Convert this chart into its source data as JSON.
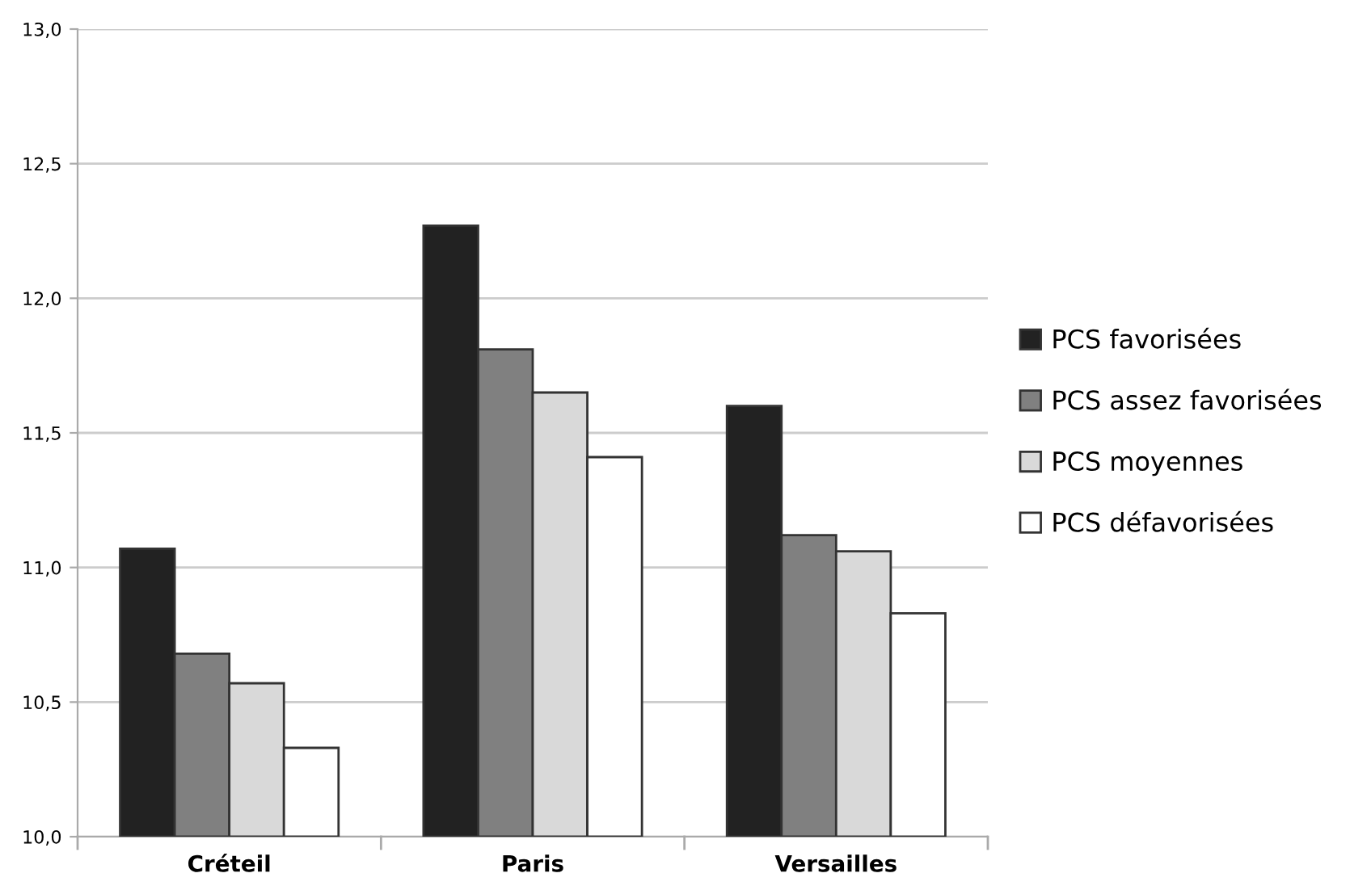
{
  "chart_data": {
    "type": "bar",
    "categories": [
      "Créteil",
      "Paris",
      "Versailles"
    ],
    "series": [
      {
        "name": "PCS favorisées",
        "color": "#222222",
        "values": [
          11.07,
          12.27,
          11.6
        ]
      },
      {
        "name": "PCS assez favorisées",
        "color": "#808080",
        "values": [
          10.68,
          11.81,
          11.12
        ]
      },
      {
        "name": "PCS moyennes",
        "color": "#d9d9d9",
        "values": [
          10.57,
          11.65,
          11.06
        ]
      },
      {
        "name": "PCS défavorisées",
        "color": "#ffffff",
        "values": [
          10.33,
          11.41,
          10.83
        ]
      }
    ],
    "ylim": [
      10.0,
      13.0
    ],
    "yticks": [
      {
        "value": 10.0,
        "label": "10,0"
      },
      {
        "value": 10.5,
        "label": "10,5"
      },
      {
        "value": 11.0,
        "label": "11,0"
      },
      {
        "value": 11.5,
        "label": "11,5"
      },
      {
        "value": 12.0,
        "label": "12,0"
      },
      {
        "value": 12.5,
        "label": "12,5"
      },
      {
        "value": 13.0,
        "label": "13,0"
      }
    ],
    "grid": "y",
    "legend": "right"
  }
}
